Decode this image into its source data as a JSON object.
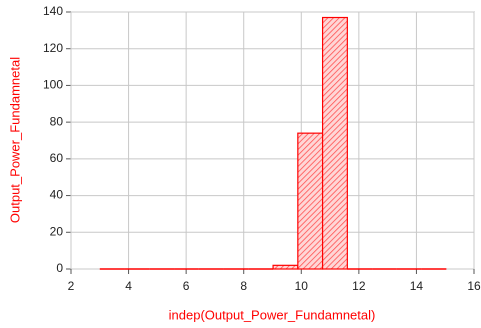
{
  "chart_data": {
    "type": "histogram",
    "xlabel": "indep(Output_Power_Fundamnetal)",
    "ylabel": "Output_Power_Fundamnetal",
    "bins": [
      3,
      3.86,
      4.72,
      5.58,
      6.44,
      7.3,
      8.16,
      9.02,
      9.88,
      10.74,
      11.6,
      12.46,
      13.32,
      14.18,
      15.04
    ],
    "counts": [
      0,
      0,
      0,
      0,
      0,
      0,
      0,
      2,
      74,
      137,
      0,
      0,
      0,
      0
    ],
    "color": "#ff0000",
    "xlim": [
      2,
      16
    ],
    "ylim": [
      0,
      140
    ],
    "xticks": [
      2,
      4,
      6,
      8,
      10,
      12,
      14,
      16
    ],
    "yticks": [
      0,
      20,
      40,
      60,
      80,
      100,
      120,
      140
    ],
    "grid": true
  }
}
